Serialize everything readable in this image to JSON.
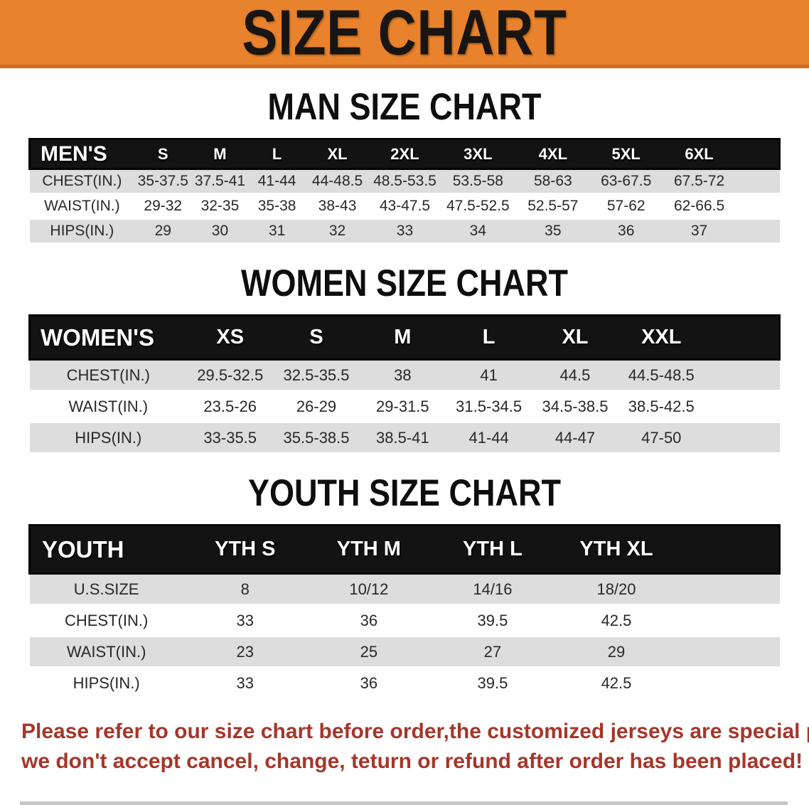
{
  "banner": {
    "title": "SIZE CHART",
    "bg_color": "#E8822C",
    "text_color": "#181512"
  },
  "sections": [
    {
      "heading": "MAN SIZE CHART",
      "table": {
        "label": "MEN'S",
        "columns": [
          "S",
          "M",
          "L",
          "XL",
          "2XL",
          "3XL",
          "4XL",
          "5XL",
          "6XL"
        ],
        "rows": [
          {
            "label": "CHEST(IN.)",
            "values": [
              "35-37.5",
              "37.5-41",
              "41-44",
              "44-48.5",
              "48.5-53.5",
              "53.5-58",
              "58-63",
              "63-67.5",
              "67.5-72"
            ]
          },
          {
            "label": "WAIST(IN.)",
            "values": [
              "29-32",
              "32-35",
              "35-38",
              "38-43",
              "43-47.5",
              "47.5-52.5",
              "52.5-57",
              "57-62",
              "62-66.5"
            ]
          },
          {
            "label": "HIPS(IN.)",
            "values": [
              "29",
              "30",
              "31",
              "32",
              "33",
              "34",
              "35",
              "36",
              "37"
            ]
          }
        ]
      }
    },
    {
      "heading": "WOMEN SIZE CHART",
      "table": {
        "label": "WOMEN'S",
        "columns": [
          "XS",
          "S",
          "M",
          "L",
          "XL",
          "XXL"
        ],
        "rows": [
          {
            "label": "CHEST(IN.)",
            "values": [
              "29.5-32.5",
              "32.5-35.5",
              "38",
              "41",
              "44.5",
              "44.5-48.5"
            ]
          },
          {
            "label": "WAIST(IN.)",
            "values": [
              "23.5-26",
              "26-29",
              "29-31.5",
              "31.5-34.5",
              "34.5-38.5",
              "38.5-42.5"
            ]
          },
          {
            "label": "HIPS(IN.)",
            "values": [
              "33-35.5",
              "35.5-38.5",
              "38.5-41",
              "41-44",
              "44-47",
              "47-50"
            ]
          }
        ]
      }
    },
    {
      "heading": "YOUTH SIZE CHART",
      "table": {
        "label": "YOUTH",
        "columns": [
          "YTH S",
          "YTH M",
          "YTH L",
          "YTH XL"
        ],
        "rows": [
          {
            "label": "U.S.SIZE",
            "values": [
              "8",
              "10/12",
              "14/16",
              "18/20"
            ]
          },
          {
            "label": "CHEST(IN.)",
            "values": [
              "33",
              "36",
              "39.5",
              "42.5"
            ]
          },
          {
            "label": "WAIST(IN.)",
            "values": [
              "23",
              "25",
              "27",
              "29"
            ]
          },
          {
            "label": "HIPS(IN.)",
            "values": [
              "33",
              "36",
              "39.5",
              "42.5"
            ]
          }
        ]
      }
    }
  ],
  "disclaimer": {
    "line1": "Please refer to our size chart before order,the customized jerseys are special products,",
    "line2": "we don't accept cancel, change, teturn or refund after order has been placed!",
    "color": "#A5362A"
  },
  "colors": {
    "table_header_bg": "#131313",
    "table_header_text": "#FFFFFF",
    "row_alt_bg": "#DDDDDE",
    "row_bg": "#FFFFFF",
    "cell_text": "#28282A"
  }
}
